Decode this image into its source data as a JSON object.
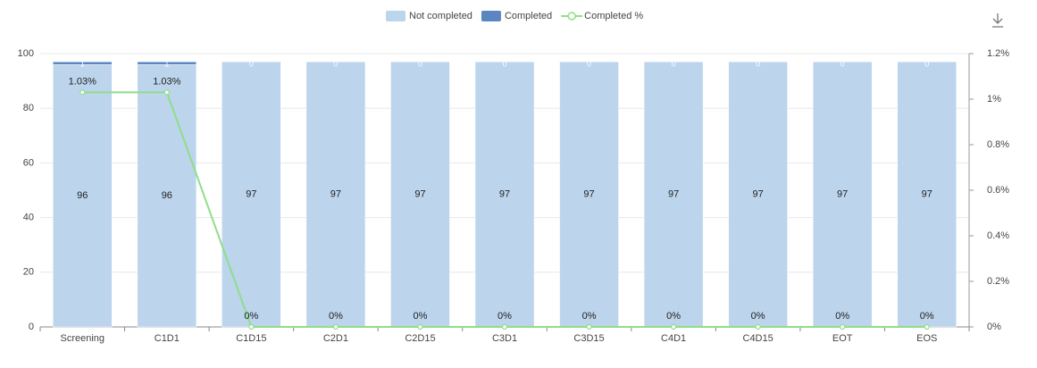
{
  "chart_data": {
    "type": "bar",
    "categories": [
      "Screening",
      "C1D1",
      "C1D15",
      "C2D1",
      "C2D15",
      "C3D1",
      "C3D15",
      "C4D1",
      "C4D15",
      "EOT",
      "EOS"
    ],
    "series": [
      {
        "name": "Not completed",
        "type": "bar",
        "color": "#bcd4ec",
        "values": [
          96,
          96,
          97,
          97,
          97,
          97,
          97,
          97,
          97,
          97,
          97
        ]
      },
      {
        "name": "Completed",
        "type": "bar",
        "color": "#5b87c0",
        "values": [
          1,
          1,
          0,
          0,
          0,
          0,
          0,
          0,
          0,
          0,
          0
        ]
      },
      {
        "name": "Completed %",
        "type": "line",
        "axis": "y2",
        "color": "#8fde88",
        "values": [
          1.03,
          1.03,
          0,
          0,
          0,
          0,
          0,
          0,
          0,
          0,
          0
        ],
        "value_labels": [
          "1.03%",
          "1.03%",
          "0%",
          "0%",
          "0%",
          "0%",
          "0%",
          "0%",
          "0%",
          "0%",
          "0%"
        ]
      }
    ],
    "ylim": [
      0,
      100
    ],
    "yticks": [
      0,
      20,
      40,
      60,
      80,
      100
    ],
    "y2lim": [
      0,
      1.2
    ],
    "y2ticks": [
      {
        "value": 0,
        "label": "0%"
      },
      {
        "value": 0.2,
        "label": "0.2%"
      },
      {
        "value": 0.4,
        "label": "0.4%"
      },
      {
        "value": 0.6,
        "label": "0.6%"
      },
      {
        "value": 0.8,
        "label": "0.8%"
      },
      {
        "value": 1,
        "label": "1%"
      },
      {
        "value": 1.2,
        "label": "1.2%"
      }
    ],
    "grid": true,
    "legend": "top"
  }
}
